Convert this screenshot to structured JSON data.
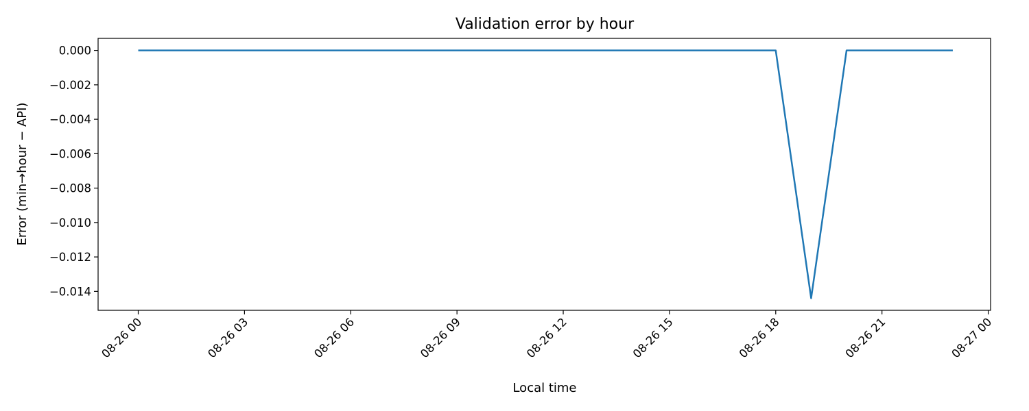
{
  "chart_data": {
    "type": "line",
    "title": "Validation error by hour",
    "xlabel": "Local time",
    "ylabel": "Error (min→hour − API)",
    "x_type": "datetime",
    "xlim": [
      "2025-08-25 22:52",
      "2025-08-27 00:04"
    ],
    "ylim": [
      -0.0151,
      0.0007
    ],
    "x_ticks": [
      {
        "value": "2025-08-26 00:00",
        "label": "08-26 00"
      },
      {
        "value": "2025-08-26 03:00",
        "label": "08-26 03"
      },
      {
        "value": "2025-08-26 06:00",
        "label": "08-26 06"
      },
      {
        "value": "2025-08-26 09:00",
        "label": "08-26 09"
      },
      {
        "value": "2025-08-26 12:00",
        "label": "08-26 12"
      },
      {
        "value": "2025-08-26 15:00",
        "label": "08-26 15"
      },
      {
        "value": "2025-08-26 18:00",
        "label": "08-26 18"
      },
      {
        "value": "2025-08-26 21:00",
        "label": "08-26 21"
      },
      {
        "value": "2025-08-27 00:00",
        "label": "08-27 00"
      }
    ],
    "y_ticks": [
      {
        "value": 0.0,
        "label": "0.000"
      },
      {
        "value": -0.002,
        "label": "−0.002"
      },
      {
        "value": -0.004,
        "label": "−0.004"
      },
      {
        "value": -0.006,
        "label": "−0.006"
      },
      {
        "value": -0.008,
        "label": "−0.008"
      },
      {
        "value": -0.01,
        "label": "−0.010"
      },
      {
        "value": -0.012,
        "label": "−0.012"
      },
      {
        "value": -0.014,
        "label": "−0.014"
      }
    ],
    "grid": false,
    "legend": "none",
    "series": [
      {
        "color": "#1f77b4",
        "points": [
          {
            "x": "2025-08-26 00:00",
            "y": 0.0
          },
          {
            "x": "2025-08-26 18:00",
            "y": 0.0
          },
          {
            "x": "2025-08-26 19:00",
            "y": -0.0144
          },
          {
            "x": "2025-08-26 20:00",
            "y": 0.0
          },
          {
            "x": "2025-08-26 23:00",
            "y": 0.0
          }
        ]
      }
    ]
  }
}
